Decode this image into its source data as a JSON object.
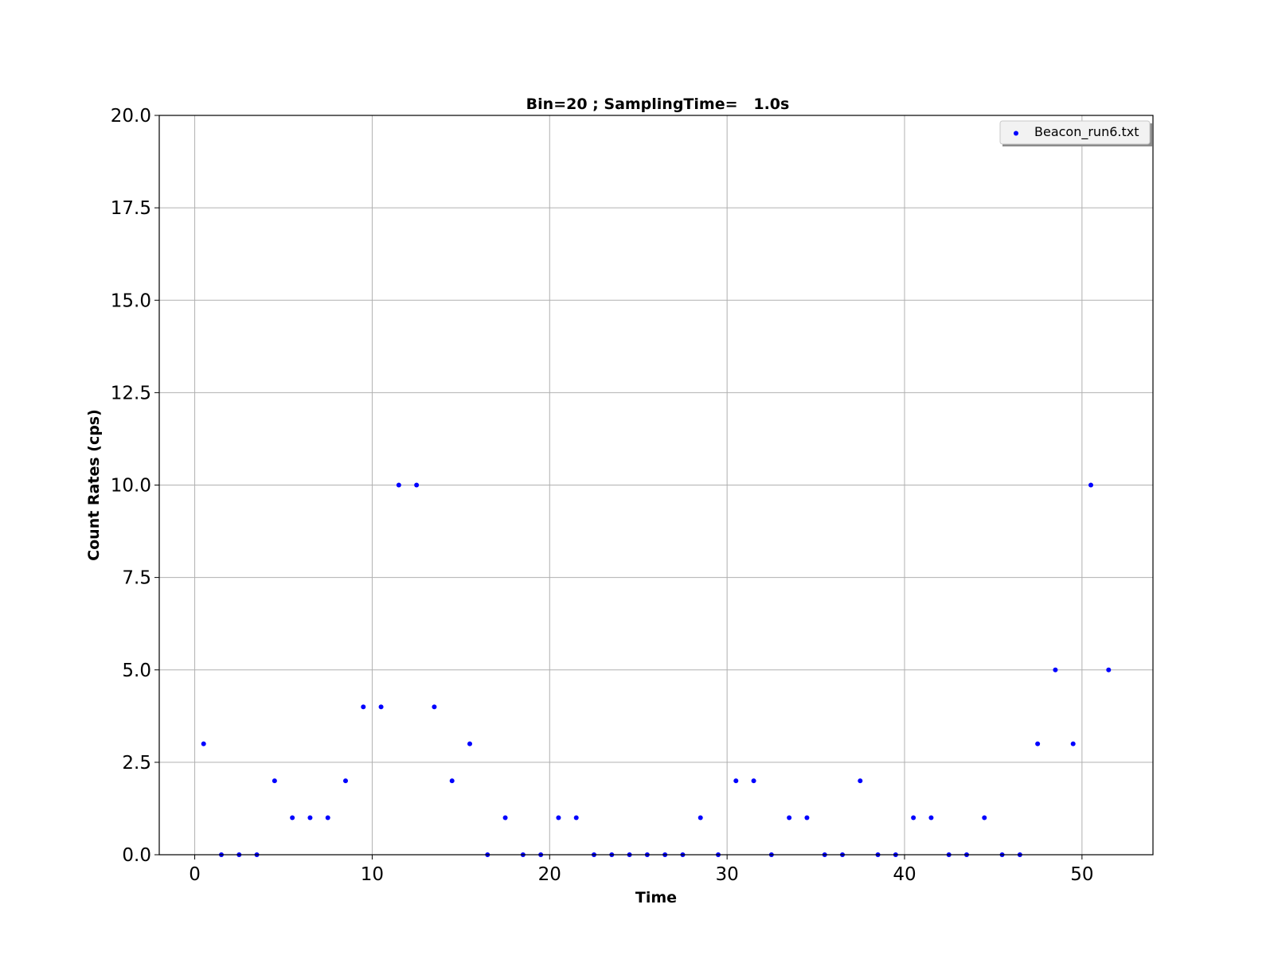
{
  "chart_data": {
    "type": "scatter",
    "title": "Bin=20 ; SamplingTime=   1.0s",
    "xlabel": "Time",
    "ylabel": "Count Rates (cps)",
    "xlim": [
      -2,
      54
    ],
    "ylim": [
      0,
      20
    ],
    "xticks": [
      0,
      10,
      20,
      30,
      40,
      50
    ],
    "yticks": [
      0.0,
      2.5,
      5.0,
      7.5,
      10.0,
      12.5,
      15.0,
      17.5,
      20.0
    ],
    "xtick_labels": [
      "0",
      "10",
      "20",
      "30",
      "40",
      "50"
    ],
    "ytick_labels": [
      "0.0",
      "2.5",
      "5.0",
      "7.5",
      "10.0",
      "12.5",
      "15.0",
      "17.5",
      "20.0"
    ],
    "grid": true,
    "legend_position": "top-right",
    "series": [
      {
        "name": "Beacon_run6.txt",
        "color": "#0000ff",
        "x": [
          0.5,
          1.5,
          2.5,
          3.5,
          4.5,
          5.5,
          6.5,
          7.5,
          8.5,
          9.5,
          10.5,
          11.5,
          12.5,
          13.5,
          14.5,
          15.5,
          16.5,
          17.5,
          18.5,
          19.5,
          20.5,
          21.5,
          22.5,
          23.5,
          24.5,
          25.5,
          26.5,
          27.5,
          28.5,
          29.5,
          30.5,
          31.5,
          32.5,
          33.5,
          34.5,
          35.5,
          36.5,
          37.5,
          38.5,
          39.5,
          40.5,
          41.5,
          42.5,
          43.5,
          44.5,
          45.5,
          46.5,
          47.5,
          48.5,
          49.5,
          50.5,
          51.5
        ],
        "y": [
          3,
          0,
          0,
          0,
          2,
          1,
          1,
          1,
          2,
          4,
          4,
          10,
          10,
          4,
          2,
          3,
          0,
          1,
          0,
          0,
          1,
          1,
          0,
          0,
          0,
          0,
          0,
          0,
          1,
          0,
          2,
          2,
          0,
          1,
          1,
          0,
          0,
          2,
          0,
          0,
          1,
          1,
          0,
          0,
          1,
          0,
          0,
          3,
          5,
          3,
          10,
          5
        ]
      }
    ]
  }
}
